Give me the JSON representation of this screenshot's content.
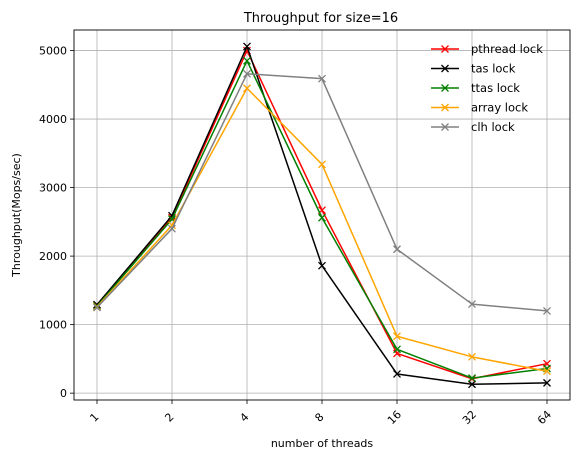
{
  "chart_data": {
    "type": "line",
    "title": "Throughput for size=16",
    "xlabel": "number of threads",
    "ylabel": "Throughput(Mops/sec)",
    "categories": [
      "1",
      "2",
      "4",
      "8",
      "16",
      "32",
      "64"
    ],
    "ylim": [
      -100,
      5300
    ],
    "yticks": [
      0,
      1000,
      2000,
      3000,
      4000,
      5000
    ],
    "grid": true,
    "legend_position": "top-right",
    "marker": "x",
    "series": [
      {
        "name": "pthread lock",
        "color": "#ff0000",
        "values": [
          1290,
          2560,
          5000,
          2670,
          580,
          210,
          430
        ]
      },
      {
        "name": "tas lock",
        "color": "#000000",
        "values": [
          1290,
          2590,
          5060,
          1860,
          280,
          130,
          150
        ]
      },
      {
        "name": "ttas lock",
        "color": "#008000",
        "values": [
          1270,
          2540,
          4850,
          2560,
          640,
          220,
          360
        ]
      },
      {
        "name": "array lock",
        "color": "#ffa500",
        "values": [
          1260,
          2450,
          4450,
          3340,
          830,
          530,
          320
        ]
      },
      {
        "name": "clh lock",
        "color": "#808080",
        "values": [
          1250,
          2400,
          4660,
          4590,
          2100,
          1300,
          1200
        ]
      }
    ]
  }
}
